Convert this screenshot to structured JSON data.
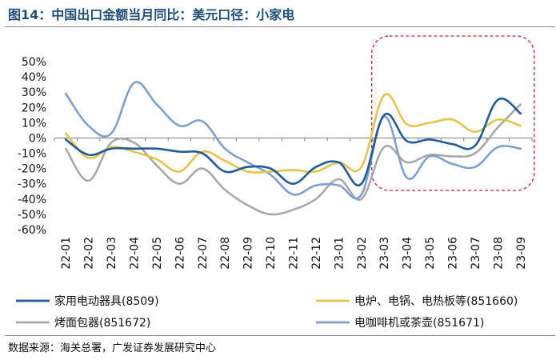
{
  "title": "图14：中国出口金额当月同比：美元口径：小家电",
  "source": "数据来源：海关总署，广发证券发展研究中心",
  "chart_data": {
    "type": "line",
    "categories": [
      "22-01",
      "22-02",
      "22-03",
      "22-04",
      "22-05",
      "22-06",
      "22-07",
      "22-08",
      "22-09",
      "22-10",
      "22-11",
      "22-12",
      "23-01",
      "23-02",
      "23-03",
      "23-04",
      "23-05",
      "23-06",
      "23-07",
      "23-08",
      "23-09"
    ],
    "ylim": [
      -60,
      50
    ],
    "yticks": [
      50,
      40,
      30,
      20,
      10,
      0,
      -10,
      -20,
      -30,
      -40,
      -50,
      -60
    ],
    "ytick_labels": [
      "50%",
      "40%",
      "30%",
      "20%",
      "10%",
      "0%",
      "-10%",
      "-20%",
      "-30%",
      "-40%",
      "-50%",
      "-60%"
    ],
    "series": [
      {
        "name": "家用电动器具(8509)",
        "color": "#1f5c99",
        "values": [
          -1,
          -11,
          -7,
          -7,
          -7,
          -9,
          -10,
          -22,
          -19,
          -20,
          -30,
          -19,
          -16,
          -30,
          15,
          -2,
          -1,
          -4,
          -5,
          25,
          16
        ]
      },
      {
        "name": "电炉、电锅、电热板等(851660)",
        "color": "#e6c34a",
        "values": [
          3,
          -13,
          -6,
          -9,
          -14,
          -22,
          -9,
          -15,
          -22,
          -22,
          -21,
          -22,
          -16,
          -19,
          28,
          9,
          10,
          12,
          4,
          12,
          8
        ]
      },
      {
        "name": "烤面包器(851672)",
        "color": "#a9a9a9",
        "values": [
          -7,
          -28,
          -3,
          -3,
          -18,
          -30,
          -20,
          -34,
          -44,
          -50,
          -47,
          -40,
          -27,
          -40,
          -6,
          -16,
          -11,
          -12,
          -10,
          7,
          22
        ]
      },
      {
        "name": "电咖啡机或茶壶(851671)",
        "color": "#7f9fcf",
        "values": [
          29,
          8,
          3,
          36,
          22,
          8,
          11,
          -7,
          -16,
          -24,
          -37,
          -31,
          -31,
          -37,
          14,
          -26,
          -12,
          -17,
          -19,
          -6,
          -7
        ]
      }
    ],
    "highlight": {
      "from": "23-03",
      "to": "23-09",
      "style": "red dashed rounded box"
    }
  }
}
